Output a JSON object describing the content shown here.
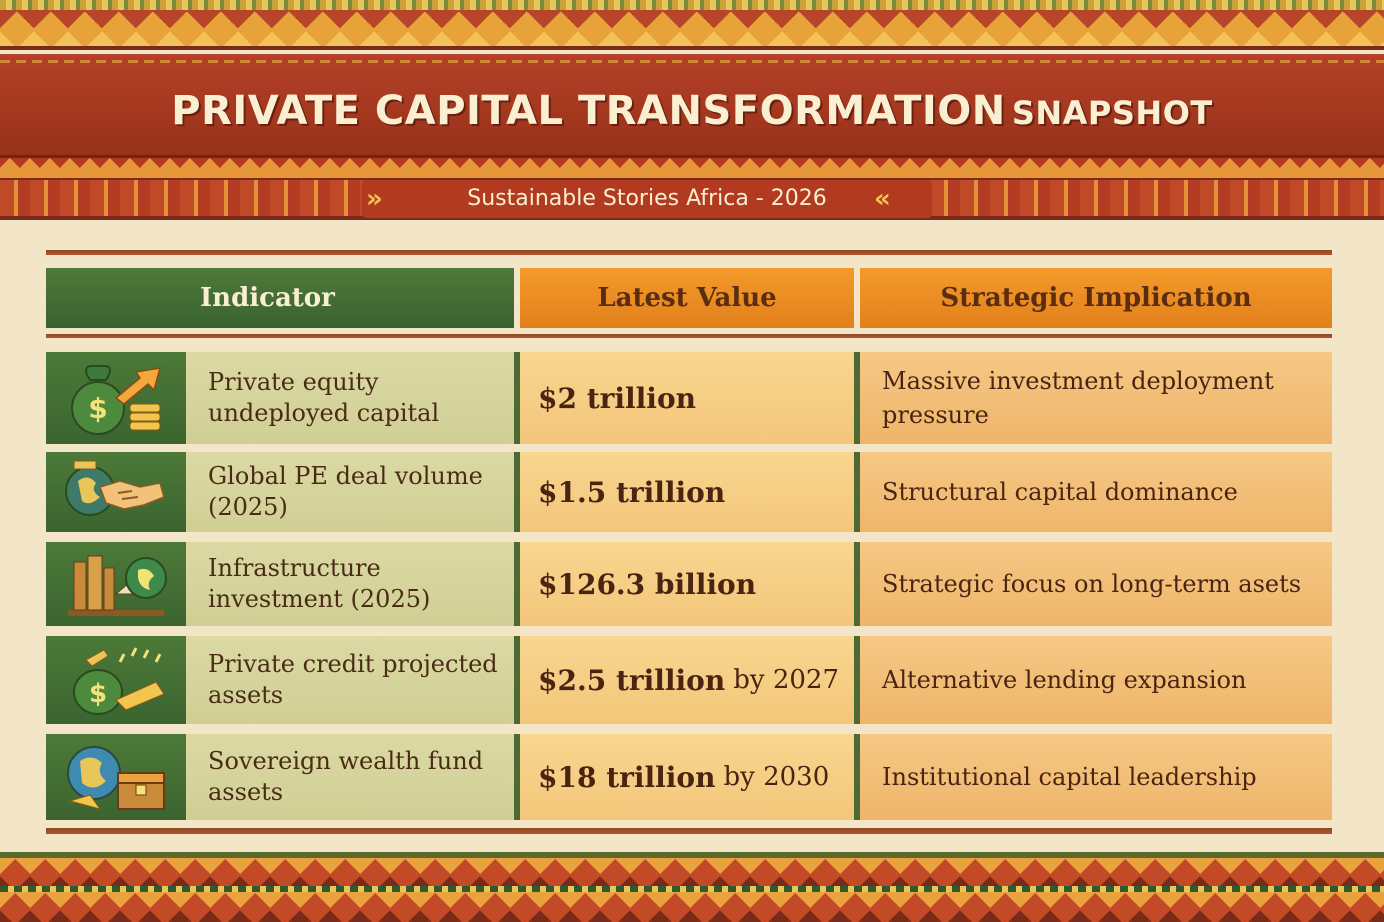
{
  "header": {
    "title_main": "PRIVATE CAPITAL TRANSFORMATION",
    "title_suffix": "SNAPSHOT",
    "subtitle": "Sustainable Stories Africa - 2026"
  },
  "table": {
    "columns": [
      "Indicator",
      "Latest Value",
      "Strategic Implication"
    ],
    "rows": [
      {
        "icon": "money-bag-growth-icon",
        "indicator": "Private equity undeployed capital",
        "value": "$2 trillion",
        "value_suffix": "",
        "implication": "Massive investment deployment pressure"
      },
      {
        "icon": "handshake-globe-icon",
        "indicator": "Global PE deal volume (2025)",
        "value": "$1.5 trillion",
        "value_suffix": "",
        "implication": "Structural capital dominance"
      },
      {
        "icon": "infrastructure-globe-icon",
        "indicator": "Infrastructure investment (2025)",
        "value": "$126.3 billion",
        "value_suffix": "",
        "implication": "Strategic focus on long-term asets"
      },
      {
        "icon": "credit-money-bag-icon",
        "indicator": "Private credit projected assets",
        "value": "$2.5 trillion",
        "value_suffix": "by 2027",
        "implication": "Alternative lending expansion"
      },
      {
        "icon": "sovereign-globe-treasure-icon",
        "indicator": "Sovereign wealth fund assets",
        "value": "$18 trillion",
        "value_suffix": "by 2030",
        "implication": "Institutional capital leadership"
      }
    ]
  },
  "colors": {
    "title_band": "#a5381f",
    "header_green": "#3a6230",
    "header_orange": "#f39a2a",
    "indicator_cell": "#d6d49c",
    "value_cell": "#f6cf86"
  }
}
